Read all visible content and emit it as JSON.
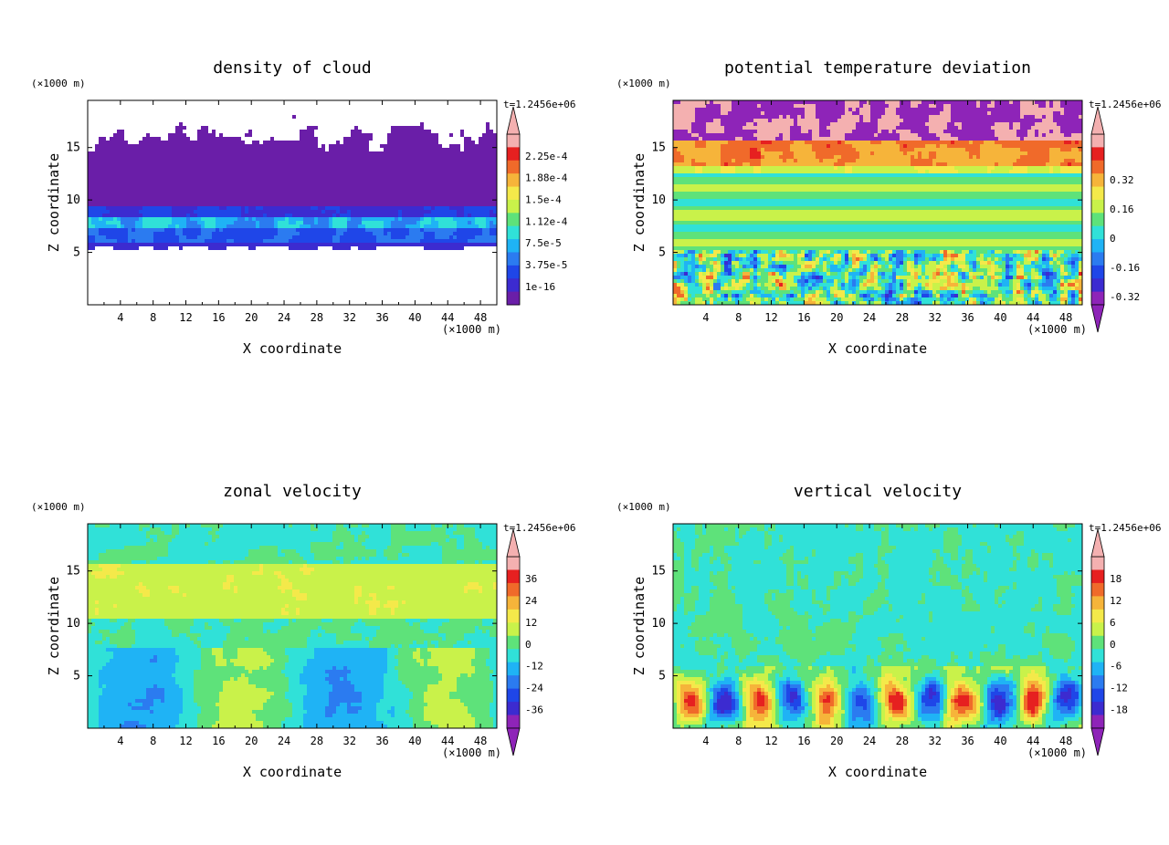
{
  "time_label": "t=1.2456e+06",
  "axis_unit": "(×1000 m)",
  "chart_data": [
    {
      "type": "heatmap",
      "title": "density of cloud",
      "xlabel": "X coordinate",
      "ylabel": "Z coordinate",
      "xlim": [
        0,
        50
      ],
      "ylim": [
        0,
        19.5
      ],
      "x_ticks": [
        "4",
        "8",
        "12",
        "16",
        "20",
        "24",
        "28",
        "32",
        "36",
        "40",
        "44",
        "48"
      ],
      "y_ticks": [
        "5",
        "10",
        "15"
      ],
      "colorbar": {
        "labels": [
          "2.25e-4",
          "1.88e-4",
          "1.5e-4",
          "1.12e-4",
          "7.5e-5",
          "3.75e-5",
          "1e-16"
        ],
        "arrow_bottom": false,
        "arrow_top": true
      },
      "colors": [
        "#ffffff",
        "#6a1ea8",
        "#3c2bd0",
        "#1f46e8",
        "#2b7bf0",
        "#1fb3f5",
        "#30e1d8",
        "#5ee27a",
        "#c9f24a",
        "#f4e94a",
        "#f6b43a",
        "#f06a2a",
        "#e62020",
        "#f4b0b0"
      ]
    },
    {
      "type": "heatmap",
      "title": "potential temperature deviation",
      "xlabel": "X coordinate",
      "ylabel": "Z coordinate",
      "xlim": [
        0,
        50
      ],
      "ylim": [
        0,
        19.5
      ],
      "x_ticks": [
        "4",
        "8",
        "12",
        "16",
        "20",
        "24",
        "28",
        "32",
        "36",
        "40",
        "44",
        "48"
      ],
      "y_ticks": [
        "5",
        "10",
        "15"
      ],
      "colorbar": {
        "labels": [
          "0.32",
          "0.16",
          "0",
          "-0.16",
          "-0.32"
        ],
        "arrow_bottom": true,
        "arrow_top": true
      },
      "colors": [
        "#8e24b8",
        "#3c2bd0",
        "#1f46e8",
        "#2b7bf0",
        "#1fb3f5",
        "#30e1d8",
        "#5ee27a",
        "#c9f24a",
        "#f4e94a",
        "#f6b43a",
        "#f06a2a",
        "#e62020",
        "#f4b0b0"
      ]
    },
    {
      "type": "heatmap",
      "title": "zonal velocity",
      "xlabel": "X coordinate",
      "ylabel": "Z coordinate",
      "xlim": [
        0,
        50
      ],
      "ylim": [
        0,
        19.5
      ],
      "x_ticks": [
        "4",
        "8",
        "12",
        "16",
        "20",
        "24",
        "28",
        "32",
        "36",
        "40",
        "44",
        "48"
      ],
      "y_ticks": [
        "5",
        "10",
        "15"
      ],
      "colorbar": {
        "labels": [
          "36",
          "24",
          "12",
          "0",
          "-12",
          "-24",
          "-36"
        ],
        "arrow_bottom": true,
        "arrow_top": true
      },
      "colors": [
        "#8e24b8",
        "#3c2bd0",
        "#1f46e8",
        "#2b7bf0",
        "#1fb3f5",
        "#30e1d8",
        "#5ee27a",
        "#c9f24a",
        "#f4e94a",
        "#f6b43a",
        "#f06a2a",
        "#e62020",
        "#f4b0b0"
      ]
    },
    {
      "type": "heatmap",
      "title": "vertical velocity",
      "xlabel": "X coordinate",
      "ylabel": "Z coordinate",
      "xlim": [
        0,
        50
      ],
      "ylim": [
        0,
        19.5
      ],
      "x_ticks": [
        "4",
        "8",
        "12",
        "16",
        "20",
        "24",
        "28",
        "32",
        "36",
        "40",
        "44",
        "48"
      ],
      "y_ticks": [
        "5",
        "10",
        "15"
      ],
      "colorbar": {
        "labels": [
          "18",
          "12",
          "6",
          "0",
          "-6",
          "-12",
          "-18"
        ],
        "arrow_bottom": true,
        "arrow_top": true
      },
      "colors": [
        "#8e24b8",
        "#3c2bd0",
        "#1f46e8",
        "#2b7bf0",
        "#1fb3f5",
        "#30e1d8",
        "#5ee27a",
        "#c9f24a",
        "#f4e94a",
        "#f6b43a",
        "#f06a2a",
        "#e62020",
        "#f4b0b0"
      ]
    }
  ]
}
